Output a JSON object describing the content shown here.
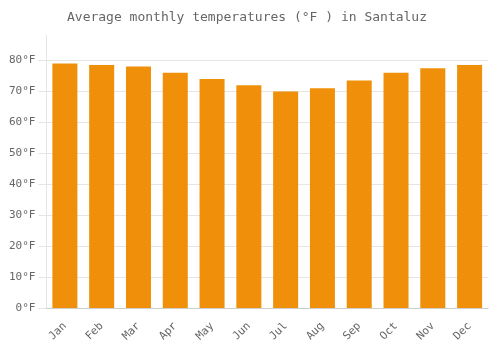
{
  "chart_data": {
    "type": "bar",
    "title": "Average monthly temperatures (°F ) in Santaluz",
    "categories": [
      "Jan",
      "Feb",
      "Mar",
      "Apr",
      "May",
      "Jun",
      "Jul",
      "Aug",
      "Sep",
      "Oct",
      "Nov",
      "Dec"
    ],
    "values": [
      79,
      78.5,
      78,
      76,
      74,
      72,
      70,
      71,
      73.5,
      76,
      77.5,
      78.5
    ],
    "color": "#F0900A",
    "ylim": [
      0,
      88
    ],
    "yticks": [
      {
        "value": 0,
        "label": "0°F"
      },
      {
        "value": 10,
        "label": "10°F"
      },
      {
        "value": 20,
        "label": "20°F"
      },
      {
        "value": 30,
        "label": "30°F"
      },
      {
        "value": 40,
        "label": "40°F"
      },
      {
        "value": 50,
        "label": "50°F"
      },
      {
        "value": 60,
        "label": "60°F"
      },
      {
        "value": 70,
        "label": "70°F"
      },
      {
        "value": 80,
        "label": "80°F"
      }
    ],
    "grid": true
  }
}
